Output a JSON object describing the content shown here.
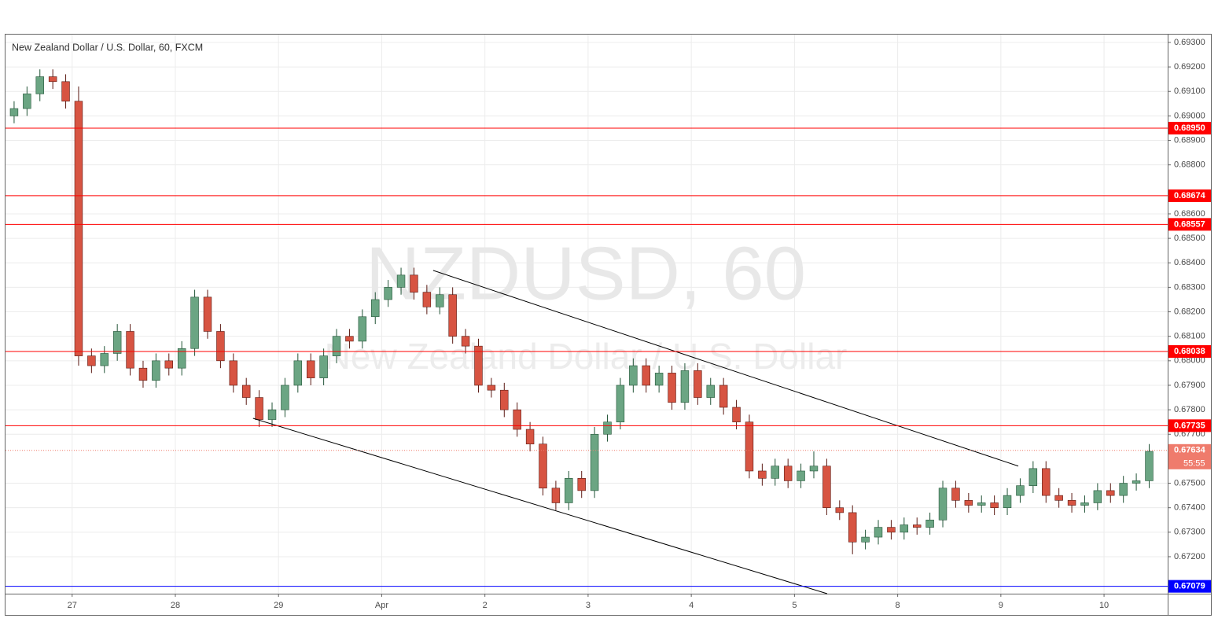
{
  "chart_data": {
    "type": "candlestick",
    "title": "New Zealand Dollar / U.S. Dollar, 60, FXCM",
    "watermark": "NZDUSD, 60",
    "watermark_subtitle": "New Zealand Dollar / U.S. Dollar",
    "up_color": "#6ba583",
    "down_color": "#d75442",
    "grid": true,
    "xlim": [
      -15.5,
      254.8
    ],
    "ylim": [
      0.67049,
      0.69332
    ],
    "xticks": [
      {
        "value": 0,
        "label": "27"
      },
      {
        "value": 24,
        "label": "28"
      },
      {
        "value": 48,
        "label": "29"
      },
      {
        "value": 72,
        "label": "Apr"
      },
      {
        "value": 96,
        "label": "2"
      },
      {
        "value": 120,
        "label": "3"
      },
      {
        "value": 144,
        "label": "4"
      },
      {
        "value": 168,
        "label": "5"
      },
      {
        "value": 192,
        "label": "8"
      },
      {
        "value": 216,
        "label": "9"
      },
      {
        "value": 240,
        "label": "10"
      }
    ],
    "yticks": [
      {
        "value": 0.693,
        "label": "0.69300"
      },
      {
        "value": 0.692,
        "label": "0.69200"
      },
      {
        "value": 0.691,
        "label": "0.69100"
      },
      {
        "value": 0.69,
        "label": "0.69000"
      },
      {
        "value": 0.689,
        "label": "0.68900"
      },
      {
        "value": 0.688,
        "label": "0.68800"
      },
      {
        "value": 0.686,
        "label": "0.68600"
      },
      {
        "value": 0.685,
        "label": "0.68500"
      },
      {
        "value": 0.684,
        "label": "0.68400"
      },
      {
        "value": 0.683,
        "label": "0.68300"
      },
      {
        "value": 0.682,
        "label": "0.68200"
      },
      {
        "value": 0.681,
        "label": "0.68100"
      },
      {
        "value": 0.68,
        "label": "0.68000"
      },
      {
        "value": 0.679,
        "label": "0.67900"
      },
      {
        "value": 0.678,
        "label": "0.67800"
      },
      {
        "value": 0.677,
        "label": "0.67700"
      },
      {
        "value": 0.675,
        "label": "0.67500"
      },
      {
        "value": 0.674,
        "label": "0.67400"
      },
      {
        "value": 0.673,
        "label": "0.67300"
      },
      {
        "value": 0.672,
        "label": "0.67200"
      }
    ],
    "levels": [
      {
        "value": 0.6895,
        "label": "0.68950",
        "color": "#ff0000"
      },
      {
        "value": 0.68674,
        "label": "0.68674",
        "color": "#ff0000"
      },
      {
        "value": 0.68557,
        "label": "0.68557",
        "color": "#ff0000"
      },
      {
        "value": 0.68038,
        "label": "0.68038",
        "color": "#ff0000"
      },
      {
        "value": 0.67735,
        "label": "0.67735",
        "color": "#ff0000"
      },
      {
        "value": 0.67079,
        "label": "0.67079",
        "color": "#0000ff"
      }
    ],
    "current_price": {
      "value": 0.67634,
      "label": "0.67634",
      "countdown": "55:55",
      "color": "#ef7b6c"
    },
    "trend_lines": [
      {
        "x": [
          83.96,
          220.06
        ],
        "y": [
          0.68369,
          0.6757
        ]
      },
      {
        "x": [
          42.07,
          175.6
        ],
        "y": [
          0.67765,
          0.67049
        ]
      }
    ],
    "x": [
      -13.5,
      -10.5,
      -7.5,
      -4.5,
      -1.5,
      1.5,
      4.5,
      7.5,
      10.5,
      13.5,
      16.5,
      19.5,
      22.5,
      25.5,
      28.5,
      31.5,
      34.5,
      37.5,
      40.5,
      43.5,
      46.5,
      49.5,
      52.5,
      55.5,
      58.5,
      61.5,
      64.5,
      67.5,
      70.5,
      73.5,
      76.5,
      79.5,
      82.5,
      85.5,
      88.5,
      91.5,
      94.5,
      97.5,
      100.5,
      103.5,
      106.5,
      109.5,
      112.5,
      115.5,
      118.5,
      121.5,
      124.5,
      127.5,
      130.5,
      133.5,
      136.5,
      139.5,
      142.5,
      145.5,
      148.5,
      151.5,
      154.5,
      157.5,
      160.5,
      163.5,
      166.5,
      169.5,
      172.5,
      175.5,
      178.5,
      181.5,
      184.5,
      187.5,
      190.5,
      193.5,
      196.5,
      199.5,
      202.5,
      205.5,
      208.5,
      211.5,
      214.5,
      217.5,
      220.5,
      223.5,
      226.5,
      229.5,
      232.5,
      235.5,
      238.5,
      241.5,
      244.5,
      247.5,
      250.5
    ],
    "open": [
      0.69,
      0.6903,
      0.6909,
      0.6916,
      0.6914,
      0.6906,
      0.6802,
      0.6798,
      0.6803,
      0.6812,
      0.6797,
      0.6792,
      0.68,
      0.6797,
      0.6805,
      0.6826,
      0.6812,
      0.68,
      0.679,
      0.6785,
      0.6776,
      0.678,
      0.679,
      0.68,
      0.6793,
      0.6802,
      0.681,
      0.6808,
      0.6818,
      0.6825,
      0.683,
      0.6835,
      0.6828,
      0.6822,
      0.6827,
      0.681,
      0.6806,
      0.679,
      0.6788,
      0.678,
      0.6772,
      0.6766,
      0.6748,
      0.6742,
      0.6752,
      0.6747,
      0.677,
      0.6775,
      0.679,
      0.6798,
      0.679,
      0.6795,
      0.6783,
      0.6796,
      0.6785,
      0.679,
      0.6781,
      0.6775,
      0.6755,
      0.6752,
      0.6757,
      0.6751,
      0.6755,
      0.6757,
      0.674,
      0.6738,
      0.6726,
      0.6728,
      0.6732,
      0.673,
      0.6733,
      0.6732,
      0.6735,
      0.6748,
      0.6743,
      0.6741,
      0.6742,
      0.674,
      0.6745,
      0.6749,
      0.6756,
      0.6745,
      0.6743,
      0.6741,
      0.6742,
      0.6747,
      0.6745,
      0.675,
      0.6751
    ],
    "high": [
      0.6906,
      0.6912,
      0.6919,
      0.6919,
      0.6917,
      0.6912,
      0.6805,
      0.6806,
      0.6815,
      0.6815,
      0.68,
      0.6803,
      0.6803,
      0.6808,
      0.6829,
      0.6829,
      0.6815,
      0.6803,
      0.6793,
      0.6788,
      0.6783,
      0.6793,
      0.6803,
      0.6803,
      0.6805,
      0.6813,
      0.6813,
      0.6821,
      0.6828,
      0.6833,
      0.6838,
      0.6838,
      0.6831,
      0.683,
      0.683,
      0.6813,
      0.6809,
      0.6793,
      0.6791,
      0.6783,
      0.6775,
      0.6769,
      0.6751,
      0.6755,
      0.6755,
      0.6773,
      0.6778,
      0.6793,
      0.6801,
      0.6801,
      0.6798,
      0.6798,
      0.6799,
      0.6799,
      0.6793,
      0.6793,
      0.6784,
      0.6778,
      0.6758,
      0.676,
      0.676,
      0.6758,
      0.6763,
      0.676,
      0.6743,
      0.6741,
      0.6731,
      0.6735,
      0.6735,
      0.6736,
      0.6736,
      0.6738,
      0.6751,
      0.6751,
      0.6746,
      0.6745,
      0.6745,
      0.6748,
      0.6752,
      0.6759,
      0.6759,
      0.6748,
      0.6746,
      0.6745,
      0.675,
      0.675,
      0.6753,
      0.6754,
      0.6766
    ],
    "low": [
      0.6897,
      0.69,
      0.6906,
      0.6911,
      0.6903,
      0.6798,
      0.6795,
      0.6795,
      0.68,
      0.6794,
      0.6789,
      0.6789,
      0.6794,
      0.6794,
      0.6802,
      0.6809,
      0.6797,
      0.6787,
      0.6782,
      0.6773,
      0.6773,
      0.6777,
      0.6787,
      0.679,
      0.679,
      0.6799,
      0.6805,
      0.6805,
      0.6815,
      0.6822,
      0.6827,
      0.6825,
      0.6819,
      0.6819,
      0.6807,
      0.6803,
      0.6787,
      0.6785,
      0.6777,
      0.6769,
      0.6763,
      0.6745,
      0.6739,
      0.6739,
      0.6744,
      0.6744,
      0.6767,
      0.6772,
      0.6787,
      0.6787,
      0.6787,
      0.678,
      0.678,
      0.6782,
      0.6782,
      0.6778,
      0.6772,
      0.6752,
      0.6749,
      0.6749,
      0.6748,
      0.6748,
      0.6752,
      0.6737,
      0.6735,
      0.6721,
      0.6723,
      0.6725,
      0.6727,
      0.6727,
      0.6729,
      0.6729,
      0.6732,
      0.674,
      0.6738,
      0.6738,
      0.6737,
      0.6737,
      0.6742,
      0.6746,
      0.6742,
      0.674,
      0.6738,
      0.6738,
      0.6739,
      0.6742,
      0.6742,
      0.6747,
      0.6748
    ],
    "close": [
      0.6903,
      0.6909,
      0.6916,
      0.6914,
      0.6906,
      0.6802,
      0.6798,
      0.6803,
      0.6812,
      0.6797,
      0.6792,
      0.68,
      0.6797,
      0.6805,
      0.6826,
      0.6812,
      0.68,
      0.679,
      0.6785,
      0.6776,
      0.678,
      0.679,
      0.68,
      0.6793,
      0.6802,
      0.681,
      0.6808,
      0.6818,
      0.6825,
      0.683,
      0.6835,
      0.6828,
      0.6822,
      0.6827,
      0.681,
      0.6806,
      0.679,
      0.6788,
      0.678,
      0.6772,
      0.6766,
      0.6748,
      0.6742,
      0.6752,
      0.6747,
      0.677,
      0.6775,
      0.679,
      0.6798,
      0.679,
      0.6795,
      0.6783,
      0.6796,
      0.6785,
      0.679,
      0.6781,
      0.6775,
      0.6755,
      0.6752,
      0.6757,
      0.6751,
      0.6755,
      0.6757,
      0.674,
      0.6738,
      0.6726,
      0.6728,
      0.6732,
      0.673,
      0.6733,
      0.6732,
      0.6735,
      0.6748,
      0.6743,
      0.6741,
      0.6742,
      0.674,
      0.6745,
      0.6749,
      0.6756,
      0.6745,
      0.6743,
      0.6741,
      0.6742,
      0.6747,
      0.6745,
      0.675,
      0.6751,
      0.6763
    ]
  }
}
